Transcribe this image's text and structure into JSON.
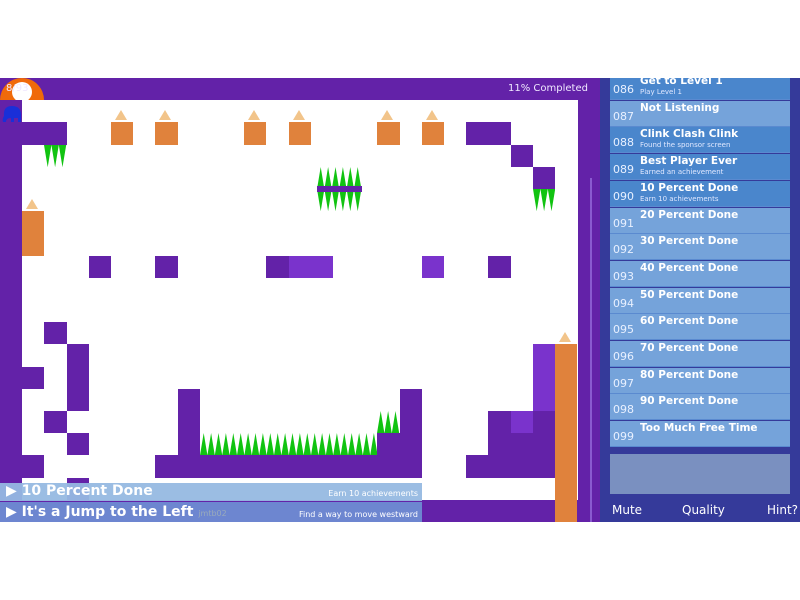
{
  "hud": {
    "counter": "8/93",
    "progress": "11% Completed"
  },
  "achievements": [
    {
      "num": "086",
      "title": "Get to Level 1",
      "desc": "Play Level 1",
      "earned": true
    },
    {
      "num": "087",
      "title": "Not Listening",
      "desc": "",
      "earned": false
    },
    {
      "num": "088",
      "title": "Clink Clash Clink",
      "desc": "Found the sponsor screen",
      "earned": true
    },
    {
      "num": "089",
      "title": "Best Player Ever",
      "desc": "Earned an achievement",
      "earned": true
    },
    {
      "num": "090",
      "title": "10 Percent Done",
      "desc": "Earn 10 achievements",
      "earned": true
    },
    {
      "num": "091",
      "title": "20 Percent Done",
      "desc": "",
      "earned": false
    },
    {
      "num": "092",
      "title": "30 Percent Done",
      "desc": "",
      "earned": false
    },
    {
      "num": "093",
      "title": "40 Percent Done",
      "desc": "",
      "earned": false
    },
    {
      "num": "094",
      "title": "50 Percent Done",
      "desc": "",
      "earned": false
    },
    {
      "num": "095",
      "title": "60 Percent Done",
      "desc": "",
      "earned": false
    },
    {
      "num": "096",
      "title": "70 Percent Done",
      "desc": "",
      "earned": false
    },
    {
      "num": "097",
      "title": "80 Percent Done",
      "desc": "",
      "earned": false
    },
    {
      "num": "098",
      "title": "90 Percent Done",
      "desc": "",
      "earned": false
    },
    {
      "num": "099",
      "title": "Too Much Free Time",
      "desc": "",
      "earned": false
    }
  ],
  "footer": {
    "mute": "Mute",
    "quality": "Quality",
    "hint": "Hint?"
  },
  "notifications": [
    {
      "title": "10 Percent Done",
      "desc": "Earn 10 achievements"
    },
    {
      "title": "It's a Jump to the Left",
      "tag": "jmtb02",
      "desc": "Find a way to move westward"
    }
  ],
  "colors": {
    "wall": "#6322a8",
    "panel": "#353a9a",
    "earned": "#4a86cc",
    "unearned": "#75a3da",
    "spikes": "#11c311",
    "crate": "#e0823c",
    "player": "#1a2fd8"
  }
}
